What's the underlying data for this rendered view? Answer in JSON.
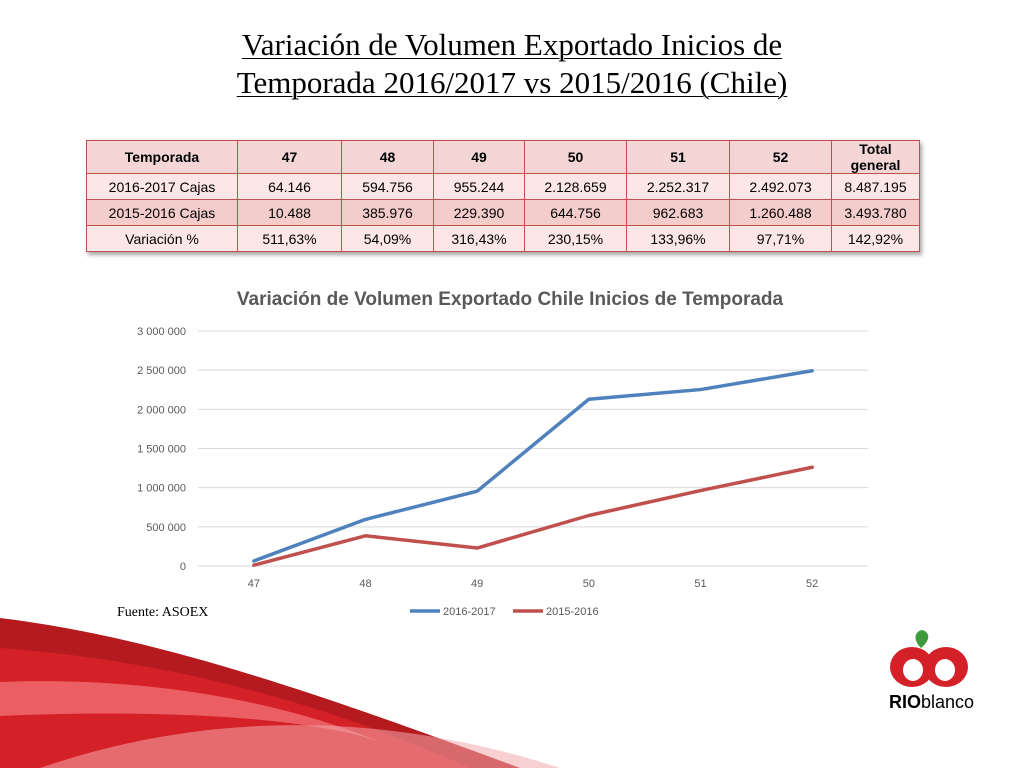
{
  "slide": {
    "title_line1": "Variación de Volumen Exportado Inicios de",
    "title_line2": "Temporada 2016/2017 vs 2015/2016 (Chile)",
    "source": "Fuente: ASOEX"
  },
  "table": {
    "header": [
      "Temporada",
      "47",
      "48",
      "49",
      "50",
      "51",
      "52",
      "Total general"
    ],
    "rows": [
      [
        "2016-2017 Cajas",
        "64.146",
        "594.756",
        "955.244",
        "2.128.659",
        "2.252.317",
        "2.492.073",
        "8.487.195"
      ],
      [
        "2015-2016 Cajas",
        "10.488",
        "385.976",
        "229.390",
        "644.756",
        "962.683",
        "1.260.488",
        "3.493.780"
      ],
      [
        "Variación %",
        "511,63%",
        "54,09%",
        "316,43%",
        "230,15%",
        "133,96%",
        "97,71%",
        "142,92%"
      ]
    ]
  },
  "chart_data": {
    "type": "line",
    "title": "Variación de Volumen Exportado Chile Inicios de Temporada",
    "categories": [
      "47",
      "48",
      "49",
      "50",
      "51",
      "52"
    ],
    "series": [
      {
        "name": "2016-2017",
        "values": [
          64146,
          594756,
          955244,
          2128659,
          2252317,
          2492073
        ],
        "color": "#4f81bd"
      },
      {
        "name": "2015-2016",
        "values": [
          10488,
          385976,
          229390,
          644756,
          962683,
          1260488
        ],
        "color": "#c0504d"
      }
    ],
    "ylim": [
      0,
      3000000
    ],
    "yticks": [
      0,
      500000,
      1000000,
      1500000,
      2000000,
      2500000,
      3000000
    ],
    "ytick_labels": [
      "0",
      "500 000",
      "1 000 000",
      "1 500 000",
      "2 000 000",
      "2 500 000",
      "3 000 000"
    ],
    "grid": true,
    "legend_position": "bottom"
  },
  "logo": {
    "text_bold": "RIO",
    "text_regular": "blanco"
  },
  "colors": {
    "accent_red": "#d42027",
    "leaf_green": "#3d9a3d",
    "grid": "#d9d9d9"
  }
}
